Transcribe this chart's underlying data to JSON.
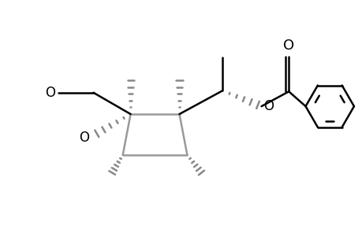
{
  "bg_color": "#ffffff",
  "line_color": "#000000",
  "stereo_color": "#888888",
  "bond_lw": 1.8,
  "figsize": [
    4.6,
    3.0
  ],
  "dpi": 100,
  "xlim": [
    0,
    9.2
  ],
  "ylim": [
    0,
    6.0
  ]
}
